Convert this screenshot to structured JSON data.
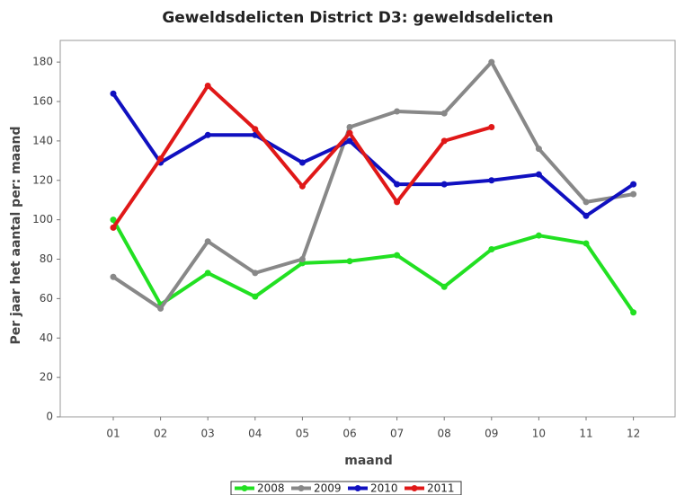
{
  "chart_data": {
    "type": "line",
    "title": "Geweldsdelicten District D3: geweldsdelicten",
    "x_label": "maand",
    "y_label": "Per jaar het aantal per: maand",
    "categories": [
      "01",
      "02",
      "03",
      "04",
      "05",
      "06",
      "07",
      "08",
      "09",
      "10",
      "11",
      "12"
    ],
    "series": [
      {
        "name": "2008",
        "color": "#22e022",
        "values": [
          100,
          57,
          73,
          61,
          78,
          79,
          82,
          66,
          85,
          92,
          88,
          53
        ]
      },
      {
        "name": "2009",
        "color": "#888888",
        "values": [
          71,
          55,
          89,
          73,
          80,
          147,
          155,
          154,
          180,
          136,
          109,
          113
        ]
      },
      {
        "name": "2010",
        "color": "#1010c0",
        "values": [
          164,
          129,
          143,
          143,
          129,
          140,
          118,
          118,
          120,
          123,
          102,
          118
        ]
      },
      {
        "name": "2011",
        "color": "#e01818",
        "values": [
          96,
          131,
          168,
          146,
          117,
          144,
          109,
          140,
          147,
          null,
          null,
          null
        ]
      }
    ],
    "ylim": [
      0,
      191
    ],
    "yticks": [
      0,
      20,
      40,
      60,
      80,
      100,
      120,
      140,
      160,
      180
    ]
  }
}
